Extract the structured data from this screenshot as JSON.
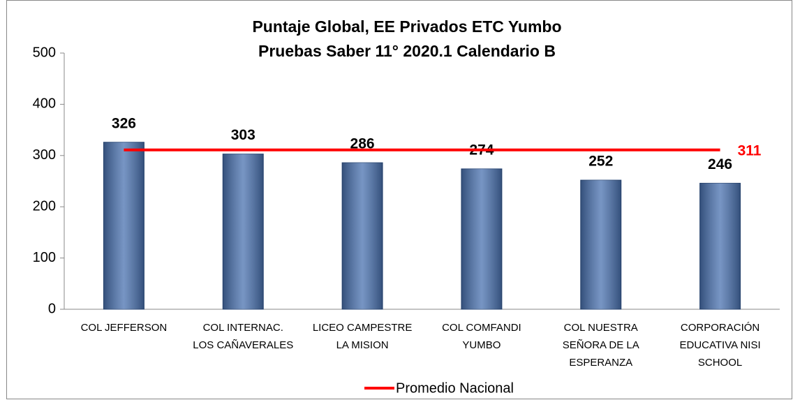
{
  "chart_data": {
    "type": "bar",
    "title": [
      "Puntaje Global, EE Privados ETC Yumbo",
      "Pruebas Saber 11° 2020.1 Calendario B"
    ],
    "categories": [
      [
        "COL JEFFERSON"
      ],
      [
        "COL INTERNAC.",
        "LOS CAÑAVERALES"
      ],
      [
        "LICEO CAMPESTRE",
        "LA MISION"
      ],
      [
        "COL COMFANDI",
        "YUMBO"
      ],
      [
        "COL NUESTRA",
        "SEÑORA DE LA",
        "ESPERANZA"
      ],
      [
        "CORPORACIÓN",
        "EDUCATIVA NISI",
        "SCHOOL"
      ]
    ],
    "series": [
      {
        "type": "bar",
        "color": "#4a72b0",
        "values": [
          326,
          303,
          286,
          274,
          252,
          246
        ]
      },
      {
        "type": "line",
        "name": "Promedio Nacional",
        "color": "#ff0000",
        "values": [
          311,
          311,
          311,
          311,
          311,
          311
        ]
      }
    ],
    "ylim": [
      0,
      500
    ],
    "yticks": [
      0,
      100,
      200,
      300,
      400,
      500
    ],
    "grid": false,
    "legend": "bottom"
  }
}
